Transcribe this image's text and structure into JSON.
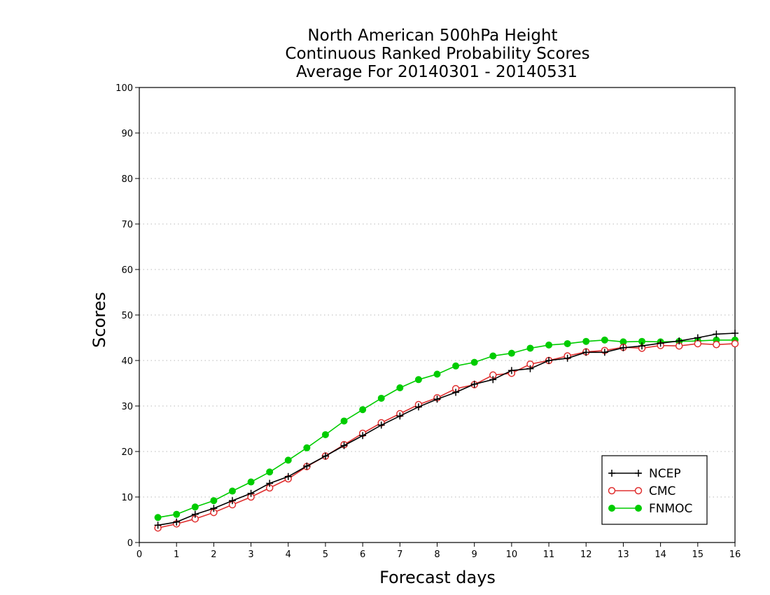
{
  "chart_data": {
    "type": "line",
    "title": [
      "North American 500hPa Height",
      "Continuous Ranked Probability Scores",
      "Average For 20140301 - 20140531"
    ],
    "xlabel": "Forecast days",
    "ylabel": "Scores",
    "xlim": [
      0,
      16
    ],
    "ylim": [
      0,
      100
    ],
    "xticks": [
      "0",
      "1",
      "2",
      "3",
      "4",
      "5",
      "6",
      "7",
      "8",
      "9",
      "10",
      "11",
      "12",
      "13",
      "14",
      "15",
      "16"
    ],
    "yticks": [
      "0",
      "10",
      "20",
      "30",
      "40",
      "50",
      "60",
      "70",
      "80",
      "90",
      "100"
    ],
    "grid": "horizontal dotted",
    "legend_position": "bottom-right",
    "x": [
      0.5,
      1,
      1.5,
      2,
      2.5,
      3,
      3.5,
      4,
      4.5,
      5,
      5.5,
      6,
      6.5,
      7,
      7.5,
      8,
      8.5,
      9,
      9.5,
      10,
      10.5,
      11,
      11.5,
      12,
      12.5,
      13,
      13.5,
      14,
      14.5,
      15,
      15.5,
      16
    ],
    "series": [
      {
        "name": "NCEP",
        "color": "#000000",
        "marker": "plus",
        "values": [
          3.8,
          4.5,
          6.2,
          7.5,
          9.2,
          10.8,
          13,
          14.5,
          16.8,
          19,
          21.3,
          23.5,
          25.8,
          27.8,
          29.8,
          31.5,
          33,
          34.8,
          35.8,
          37.8,
          38.2,
          40,
          40.5,
          41.8,
          41.8,
          42.8,
          43.2,
          43.8,
          44.3,
          45,
          45.8,
          46
        ]
      },
      {
        "name": "CMC",
        "color": "#e03030",
        "marker": "open-circle",
        "values": [
          3.2,
          4.1,
          5.2,
          6.6,
          8.3,
          10,
          12,
          14,
          16.7,
          19,
          21.5,
          24,
          26.3,
          28.3,
          30.3,
          31.8,
          33.8,
          34.7,
          36.8,
          37.2,
          39.2,
          40,
          41,
          41.9,
          42.2,
          42.9,
          42.7,
          43.3,
          43.2,
          43.7,
          43.5,
          43.7
        ]
      },
      {
        "name": "FNMOC",
        "color": "#00cc00",
        "marker": "filled-circle",
        "values": [
          5.5,
          6.2,
          7.8,
          9.2,
          11.3,
          13.3,
          15.5,
          18.1,
          20.8,
          23.7,
          26.7,
          29.2,
          31.7,
          34,
          35.8,
          37,
          38.8,
          39.6,
          41,
          41.6,
          42.7,
          43.4,
          43.7,
          44.2,
          44.5,
          44.1,
          44.2,
          44.1,
          44.2,
          44.3,
          44.5,
          44.5
        ]
      }
    ]
  }
}
